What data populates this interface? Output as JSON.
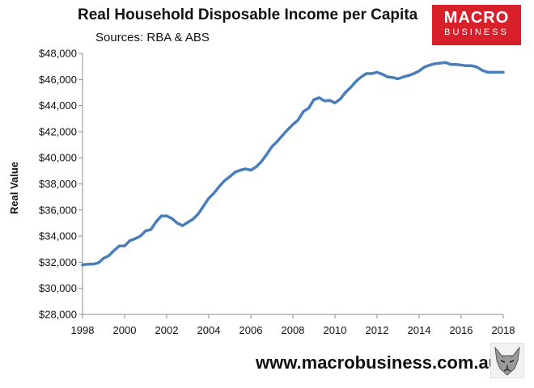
{
  "header": {
    "title": "Real Household Disposable Income per Capita",
    "subtitle": "Sources: RBA & ABS"
  },
  "logo": {
    "line1": "MACRO",
    "line2": "BUSINESS",
    "color": "#d8202b"
  },
  "footer": {
    "url": "www.macrobusiness.com.au"
  },
  "chart_data": {
    "type": "line",
    "title": "Real Household Disposable Income per Capita",
    "subtitle": "Sources: RBA & ABS",
    "xlabel": "",
    "ylabel": "Real Value",
    "xlim": [
      1998,
      2018
    ],
    "ylim": [
      28000,
      48000
    ],
    "x_ticks": [
      "1998",
      "2000",
      "2002",
      "2004",
      "2006",
      "2008",
      "2010",
      "2012",
      "2014",
      "2016",
      "2018"
    ],
    "y_ticks": [
      "$28,000",
      "$30,000",
      "$32,000",
      "$34,000",
      "$36,000",
      "$38,000",
      "$40,000",
      "$42,000",
      "$44,000",
      "$46,000",
      "$48,000"
    ],
    "grid": false,
    "line_color": "#4a7ebb",
    "series": [
      {
        "x": [
          1998.0,
          1998.25,
          1998.5,
          1998.75,
          1999.0,
          1999.25,
          1999.5,
          1999.75,
          2000.0,
          2000.25,
          2000.5,
          2000.75,
          2001.0,
          2001.25,
          2001.5,
          2001.75,
          2002.0,
          2002.25,
          2002.5,
          2002.75,
          2003.0,
          2003.25,
          2003.5,
          2003.75,
          2004.0,
          2004.25,
          2004.5,
          2004.75,
          2005.0,
          2005.25,
          2005.5,
          2005.75,
          2006.0,
          2006.25,
          2006.5,
          2006.75,
          2007.0,
          2007.25,
          2007.5,
          2007.75,
          2008.0,
          2008.25,
          2008.5,
          2008.75,
          2009.0,
          2009.25,
          2009.5,
          2009.75,
          2010.0,
          2010.25,
          2010.5,
          2010.75,
          2011.0,
          2011.25,
          2011.5,
          2011.75,
          2012.0,
          2012.25,
          2012.5,
          2012.75,
          2013.0,
          2013.25,
          2013.5,
          2013.75,
          2014.0,
          2014.25,
          2014.5,
          2014.75,
          2015.0,
          2015.25,
          2015.5,
          2015.75,
          2016.0,
          2016.25,
          2016.5,
          2016.75,
          2017.0,
          2017.25,
          2017.5,
          2017.75,
          2018.0
        ],
        "values": [
          31800,
          31850,
          31850,
          31950,
          32300,
          32500,
          32900,
          33250,
          33250,
          33650,
          33800,
          34000,
          34400,
          34500,
          35100,
          35550,
          35550,
          35350,
          35000,
          34800,
          35050,
          35300,
          35700,
          36300,
          36900,
          37300,
          37800,
          38250,
          38550,
          38900,
          39050,
          39150,
          39050,
          39300,
          39700,
          40250,
          40850,
          41250,
          41700,
          42150,
          42550,
          42900,
          43550,
          43800,
          44450,
          44600,
          44350,
          44400,
          44200,
          44500,
          45000,
          45400,
          45850,
          46200,
          46450,
          46450,
          46550,
          46400,
          46200,
          46150,
          46050,
          46200,
          46300,
          46450,
          46650,
          46950,
          47100,
          47200,
          47250,
          47300,
          47150,
          47150,
          47100,
          47050,
          47050,
          46950,
          46700,
          46550,
          46550,
          46550,
          46550
        ]
      }
    ]
  }
}
